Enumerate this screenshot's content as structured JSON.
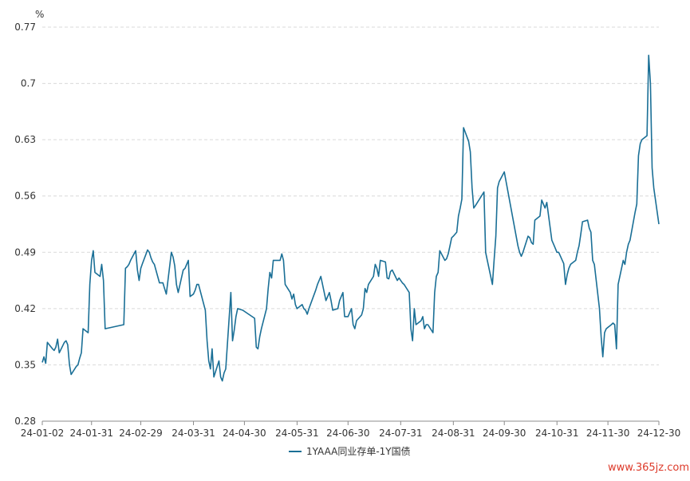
{
  "chart_data": {
    "type": "line",
    "title": "",
    "y_unit": "%",
    "ylim": [
      0.28,
      0.77
    ],
    "y_ticks": [
      "0.28",
      "0.35",
      "0.42",
      "0.49",
      "0.56",
      "0.63",
      "0.7",
      "0.77"
    ],
    "x_ticks": [
      "24-01-02",
      "24-01-31",
      "24-02-29",
      "24-03-31",
      "24-04-30",
      "24-05-31",
      "24-06-30",
      "24-07-31",
      "24-08-31",
      "24-09-30",
      "24-10-31",
      "24-11-30",
      "24-12-30"
    ],
    "grid": true,
    "legend_position": "bottom-center",
    "series": [
      {
        "name": "1YAAA同业存单-1Y国债",
        "color": "#1a6f96",
        "points": [
          [
            "24-01-02",
            0.353
          ],
          [
            "24-01-03",
            0.36
          ],
          [
            "24-01-04",
            0.352
          ],
          [
            "24-01-05",
            0.378
          ],
          [
            "24-01-08",
            0.37
          ],
          [
            "24-01-09",
            0.368
          ],
          [
            "24-01-10",
            0.372
          ],
          [
            "24-01-11",
            0.382
          ],
          [
            "24-01-12",
            0.365
          ],
          [
            "24-01-15",
            0.378
          ],
          [
            "24-01-16",
            0.38
          ],
          [
            "24-01-17",
            0.375
          ],
          [
            "24-01-18",
            0.35
          ],
          [
            "24-01-19",
            0.338
          ],
          [
            "24-01-22",
            0.348
          ],
          [
            "24-01-23",
            0.35
          ],
          [
            "24-01-24",
            0.358
          ],
          [
            "24-01-25",
            0.365
          ],
          [
            "24-01-26",
            0.395
          ],
          [
            "24-01-29",
            0.39
          ],
          [
            "24-01-30",
            0.45
          ],
          [
            "24-01-31",
            0.48
          ],
          [
            "24-02-01",
            0.492
          ],
          [
            "24-02-02",
            0.465
          ],
          [
            "24-02-05",
            0.46
          ],
          [
            "24-02-06",
            0.475
          ],
          [
            "24-02-07",
            0.455
          ],
          [
            "24-02-08",
            0.395
          ],
          [
            "24-02-19",
            0.4
          ],
          [
            "24-02-20",
            0.47
          ],
          [
            "24-02-21",
            0.472
          ],
          [
            "24-02-22",
            0.475
          ],
          [
            "24-02-23",
            0.48
          ],
          [
            "24-02-26",
            0.492
          ],
          [
            "24-02-27",
            0.468
          ],
          [
            "24-02-28",
            0.455
          ],
          [
            "24-02-29",
            0.47
          ],
          [
            "24-03-01",
            0.476
          ],
          [
            "24-03-04",
            0.493
          ],
          [
            "24-03-05",
            0.49
          ],
          [
            "24-03-06",
            0.483
          ],
          [
            "24-03-07",
            0.478
          ],
          [
            "24-03-08",
            0.475
          ],
          [
            "24-03-11",
            0.452
          ],
          [
            "24-03-12",
            0.452
          ],
          [
            "24-03-13",
            0.452
          ],
          [
            "24-03-14",
            0.445
          ],
          [
            "24-03-15",
            0.438
          ],
          [
            "24-03-18",
            0.49
          ],
          [
            "24-03-19",
            0.484
          ],
          [
            "24-03-20",
            0.473
          ],
          [
            "24-03-21",
            0.45
          ],
          [
            "24-03-22",
            0.44
          ],
          [
            "24-03-25",
            0.468
          ],
          [
            "24-03-26",
            0.47
          ],
          [
            "24-03-27",
            0.475
          ],
          [
            "24-03-28",
            0.48
          ],
          [
            "24-03-29",
            0.435
          ],
          [
            "24-03-31",
            0.438
          ],
          [
            "24-04-01",
            0.443
          ],
          [
            "24-04-02",
            0.45
          ],
          [
            "24-04-03",
            0.45
          ],
          [
            "24-04-07",
            0.418
          ],
          [
            "24-04-08",
            0.38
          ],
          [
            "24-04-09",
            0.355
          ],
          [
            "24-04-10",
            0.345
          ],
          [
            "24-04-11",
            0.37
          ],
          [
            "24-04-12",
            0.335
          ],
          [
            "24-04-15",
            0.355
          ],
          [
            "24-04-16",
            0.335
          ],
          [
            "24-04-17",
            0.33
          ],
          [
            "24-04-18",
            0.34
          ],
          [
            "24-04-19",
            0.345
          ],
          [
            "24-04-22",
            0.44
          ],
          [
            "24-04-23",
            0.38
          ],
          [
            "24-04-24",
            0.393
          ],
          [
            "24-04-25",
            0.41
          ],
          [
            "24-04-26",
            0.42
          ],
          [
            "24-04-29",
            0.418
          ],
          [
            "24-05-06",
            0.408
          ],
          [
            "24-05-07",
            0.372
          ],
          [
            "24-05-08",
            0.37
          ],
          [
            "24-05-09",
            0.385
          ],
          [
            "24-05-10",
            0.395
          ],
          [
            "24-05-13",
            0.42
          ],
          [
            "24-05-14",
            0.445
          ],
          [
            "24-05-15",
            0.465
          ],
          [
            "24-05-16",
            0.458
          ],
          [
            "24-05-17",
            0.48
          ],
          [
            "24-05-20",
            0.48
          ],
          [
            "24-05-21",
            0.48
          ],
          [
            "24-05-22",
            0.488
          ],
          [
            "24-05-23",
            0.48
          ],
          [
            "24-05-24",
            0.45
          ],
          [
            "24-05-27",
            0.44
          ],
          [
            "24-05-28",
            0.432
          ],
          [
            "24-05-29",
            0.438
          ],
          [
            "24-05-30",
            0.425
          ],
          [
            "24-05-31",
            0.42
          ],
          [
            "24-06-03",
            0.425
          ],
          [
            "24-06-04",
            0.42
          ],
          [
            "24-06-05",
            0.418
          ],
          [
            "24-06-06",
            0.413
          ],
          [
            "24-06-07",
            0.42
          ],
          [
            "24-06-11",
            0.443
          ],
          [
            "24-06-12",
            0.45
          ],
          [
            "24-06-13",
            0.455
          ],
          [
            "24-06-14",
            0.46
          ],
          [
            "24-06-17",
            0.43
          ],
          [
            "24-06-18",
            0.435
          ],
          [
            "24-06-19",
            0.44
          ],
          [
            "24-06-20",
            0.43
          ],
          [
            "24-06-21",
            0.418
          ],
          [
            "24-06-24",
            0.42
          ],
          [
            "24-06-25",
            0.43
          ],
          [
            "24-06-26",
            0.435
          ],
          [
            "24-06-27",
            0.44
          ],
          [
            "24-06-28",
            0.41
          ],
          [
            "24-06-30",
            0.41
          ],
          [
            "24-07-01",
            0.415
          ],
          [
            "24-07-02",
            0.42
          ],
          [
            "24-07-03",
            0.4
          ],
          [
            "24-07-04",
            0.395
          ],
          [
            "24-07-05",
            0.405
          ],
          [
            "24-07-08",
            0.412
          ],
          [
            "24-07-09",
            0.42
          ],
          [
            "24-07-10",
            0.445
          ],
          [
            "24-07-11",
            0.44
          ],
          [
            "24-07-12",
            0.45
          ],
          [
            "24-07-15",
            0.46
          ],
          [
            "24-07-16",
            0.475
          ],
          [
            "24-07-17",
            0.47
          ],
          [
            "24-07-18",
            0.46
          ],
          [
            "24-07-19",
            0.48
          ],
          [
            "24-07-22",
            0.478
          ],
          [
            "24-07-23",
            0.458
          ],
          [
            "24-07-24",
            0.457
          ],
          [
            "24-07-25",
            0.466
          ],
          [
            "24-07-26",
            0.468
          ],
          [
            "24-07-29",
            0.455
          ],
          [
            "24-07-30",
            0.458
          ],
          [
            "24-07-31",
            0.455
          ],
          [
            "24-08-01",
            0.452
          ],
          [
            "24-08-02",
            0.45
          ],
          [
            "24-08-05",
            0.44
          ],
          [
            "24-08-06",
            0.395
          ],
          [
            "24-08-07",
            0.38
          ],
          [
            "24-08-08",
            0.42
          ],
          [
            "24-08-09",
            0.4
          ],
          [
            "24-08-12",
            0.405
          ],
          [
            "24-08-13",
            0.41
          ],
          [
            "24-08-14",
            0.395
          ],
          [
            "24-08-15",
            0.4
          ],
          [
            "24-08-16",
            0.4
          ],
          [
            "24-08-19",
            0.39
          ],
          [
            "24-08-20",
            0.44
          ],
          [
            "24-08-21",
            0.46
          ],
          [
            "24-08-22",
            0.465
          ],
          [
            "24-08-23",
            0.492
          ],
          [
            "24-08-26",
            0.48
          ],
          [
            "24-08-27",
            0.482
          ],
          [
            "24-08-28",
            0.488
          ],
          [
            "24-08-29",
            0.498
          ],
          [
            "24-08-30",
            0.508
          ],
          [
            "24-08-31",
            0.51
          ],
          [
            "24-09-02",
            0.515
          ],
          [
            "24-09-03",
            0.535
          ],
          [
            "24-09-04",
            0.545
          ],
          [
            "24-09-05",
            0.556
          ],
          [
            "24-09-06",
            0.645
          ],
          [
            "24-09-09",
            0.628
          ],
          [
            "24-09-10",
            0.615
          ],
          [
            "24-09-11",
            0.57
          ],
          [
            "24-09-12",
            0.545
          ],
          [
            "24-09-13",
            0.548
          ],
          [
            "24-09-18",
            0.565
          ],
          [
            "24-09-19",
            0.49
          ],
          [
            "24-09-20",
            0.48
          ],
          [
            "24-09-23",
            0.45
          ],
          [
            "24-09-24",
            0.48
          ],
          [
            "24-09-25",
            0.51
          ],
          [
            "24-09-26",
            0.57
          ],
          [
            "24-09-27",
            0.578
          ],
          [
            "24-09-30",
            0.59
          ],
          [
            "24-10-08",
            0.498
          ],
          [
            "24-10-09",
            0.49
          ],
          [
            "24-10-10",
            0.485
          ],
          [
            "24-10-11",
            0.49
          ],
          [
            "24-10-14",
            0.51
          ],
          [
            "24-10-15",
            0.508
          ],
          [
            "24-10-16",
            0.502
          ],
          [
            "24-10-17",
            0.5
          ],
          [
            "24-10-18",
            0.53
          ],
          [
            "24-10-21",
            0.535
          ],
          [
            "24-10-22",
            0.555
          ],
          [
            "24-10-23",
            0.55
          ],
          [
            "24-10-24",
            0.545
          ],
          [
            "24-10-25",
            0.552
          ],
          [
            "24-10-28",
            0.505
          ],
          [
            "24-10-29",
            0.5
          ],
          [
            "24-10-30",
            0.495
          ],
          [
            "24-10-31",
            0.49
          ],
          [
            "24-11-01",
            0.49
          ],
          [
            "24-11-04",
            0.476
          ],
          [
            "24-11-05",
            0.45
          ],
          [
            "24-11-06",
            0.462
          ],
          [
            "24-11-07",
            0.47
          ],
          [
            "24-11-08",
            0.475
          ],
          [
            "24-11-11",
            0.48
          ],
          [
            "24-11-12",
            0.49
          ],
          [
            "24-11-13",
            0.498
          ],
          [
            "24-11-14",
            0.512
          ],
          [
            "24-11-15",
            0.528
          ],
          [
            "24-11-18",
            0.53
          ],
          [
            "24-11-19",
            0.52
          ],
          [
            "24-11-20",
            0.515
          ],
          [
            "24-11-21",
            0.48
          ],
          [
            "24-11-22",
            0.475
          ],
          [
            "24-11-25",
            0.42
          ],
          [
            "24-11-26",
            0.385
          ],
          [
            "24-11-27",
            0.36
          ],
          [
            "24-11-28",
            0.39
          ],
          [
            "24-11-29",
            0.395
          ],
          [
            "24-12-02",
            0.4
          ],
          [
            "24-12-03",
            0.402
          ],
          [
            "24-12-04",
            0.4
          ],
          [
            "24-12-05",
            0.37
          ],
          [
            "24-12-06",
            0.45
          ],
          [
            "24-12-09",
            0.48
          ],
          [
            "24-12-10",
            0.475
          ],
          [
            "24-12-11",
            0.49
          ],
          [
            "24-12-12",
            0.5
          ],
          [
            "24-12-13",
            0.505
          ],
          [
            "24-12-16",
            0.54
          ],
          [
            "24-12-17",
            0.55
          ],
          [
            "24-12-18",
            0.61
          ],
          [
            "24-12-19",
            0.625
          ],
          [
            "24-12-20",
            0.63
          ],
          [
            "24-12-23",
            0.635
          ],
          [
            "24-12-24",
            0.735
          ],
          [
            "24-12-25",
            0.7
          ],
          [
            "24-12-26",
            0.595
          ],
          [
            "24-12-27",
            0.57
          ],
          [
            "24-12-30",
            0.525
          ]
        ]
      }
    ]
  },
  "watermark": "www.365jz.com"
}
